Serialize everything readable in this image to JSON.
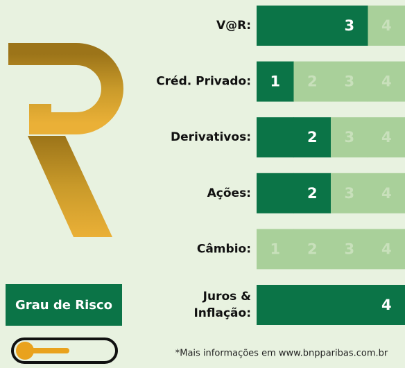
{
  "badge": "Grau de Risco",
  "footer": "*Mais informações em www.bnpparibas.com.br",
  "colors": {
    "filled": "#0b7447",
    "empty": "#a9d09a",
    "filled_text": "#ffffff",
    "empty_text": "#c8e0bb"
  },
  "rows": [
    {
      "label": [
        "V@R:"
      ],
      "cells": [
        {
          "filled": true
        },
        {
          "filled": true
        },
        {
          "filled": true,
          "text": "3"
        },
        {
          "filled": false,
          "text": "4"
        }
      ]
    },
    {
      "label": [
        "Créd. Privado:"
      ],
      "cells": [
        {
          "filled": true,
          "text": "1"
        },
        {
          "filled": false,
          "text": "2"
        },
        {
          "filled": false,
          "text": "3"
        },
        {
          "filled": false,
          "text": "4"
        }
      ]
    },
    {
      "label": [
        "Derivativos:"
      ],
      "cells": [
        {
          "filled": true
        },
        {
          "filled": true,
          "text": "2"
        },
        {
          "filled": false,
          "text": "3"
        },
        {
          "filled": false,
          "text": "4"
        }
      ]
    },
    {
      "label": [
        "Ações:"
      ],
      "cells": [
        {
          "filled": true
        },
        {
          "filled": true,
          "text": "2"
        },
        {
          "filled": false,
          "text": "3"
        },
        {
          "filled": false,
          "text": "4"
        }
      ]
    },
    {
      "label": [
        "Câmbio:"
      ],
      "cells": [
        {
          "filled": false,
          "text": "1"
        },
        {
          "filled": false,
          "text": "2"
        },
        {
          "filled": false,
          "text": "3"
        },
        {
          "filled": false,
          "text": "4"
        }
      ]
    },
    {
      "label": [
        "Juros &",
        "Inflação:"
      ],
      "cells": [
        {
          "filled": true
        },
        {
          "filled": true
        },
        {
          "filled": true
        },
        {
          "filled": true,
          "text": "4"
        }
      ]
    }
  ]
}
